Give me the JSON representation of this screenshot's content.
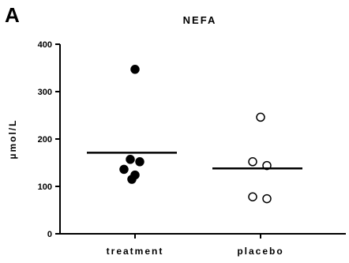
{
  "panel_label": "A",
  "chart_data": {
    "type": "scatter",
    "title": "NEFA",
    "xlabel": "",
    "ylabel": "µmol/L",
    "ylim": [
      0,
      400
    ],
    "yticks": [
      0,
      100,
      200,
      300,
      400
    ],
    "categories": [
      "treatment",
      "placebo"
    ],
    "grid": false,
    "series": [
      {
        "category": "treatment",
        "marker": "filled-circle",
        "points": [
          347,
          157,
          152,
          136,
          124,
          115
        ],
        "mean": 171
      },
      {
        "category": "placebo",
        "marker": "open-circle",
        "points": [
          246,
          152,
          144,
          78,
          74
        ],
        "mean": 138
      }
    ],
    "colors": {
      "axis": "#000000",
      "marker": "#000000",
      "open_fill": "#ffffff"
    }
  }
}
